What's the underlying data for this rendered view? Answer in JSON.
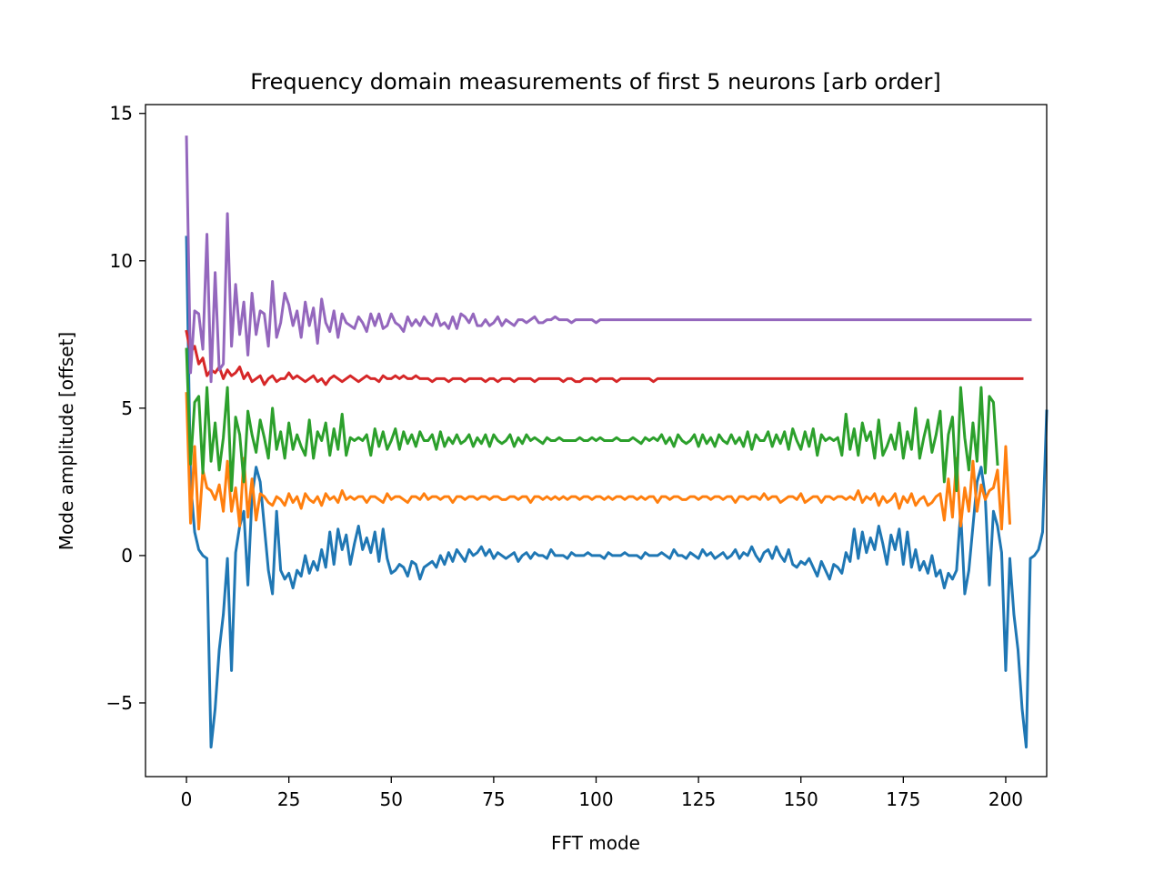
{
  "chart_data": {
    "type": "line",
    "title": "Frequency domain measurements of first 5 neurons [arb order]",
    "xlabel": "FFT mode",
    "ylabel": "Mode amplitude [offset]",
    "xlim": [
      -10,
      210
    ],
    "ylim": [
      -7.5,
      15.3
    ],
    "xticks": [
      0,
      25,
      50,
      75,
      100,
      125,
      150,
      175,
      200
    ],
    "yticks": [
      -5,
      0,
      5,
      10,
      15
    ],
    "ytick_labels": [
      "−5",
      "0",
      "5",
      "10",
      "15"
    ],
    "grid": false,
    "x_step": 1,
    "series": [
      {
        "color": "#1f77b4",
        "values": [
          10.8,
          2.5,
          0.8,
          0.2,
          0.0,
          -0.1,
          -6.5,
          -5.2,
          -3.2,
          -2.0,
          -0.1,
          -3.9,
          0.1,
          1.0,
          1.5,
          -1.0,
          2.0,
          3.0,
          2.5,
          1.0,
          -0.5,
          -1.3,
          1.5,
          -0.5,
          -0.8,
          -0.6,
          -1.1,
          -0.5,
          -0.7,
          0.0,
          -0.6,
          -0.2,
          -0.5,
          0.2,
          -0.4,
          0.8,
          -0.3,
          0.9,
          0.2,
          0.7,
          -0.3,
          0.4,
          1.0,
          0.2,
          0.6,
          0.1,
          0.8,
          -0.2,
          0.9,
          -0.1,
          -0.6,
          -0.5,
          -0.3,
          -0.4,
          -0.7,
          -0.2,
          -0.3,
          -0.8,
          -0.4,
          -0.3,
          -0.2,
          -0.4,
          0.0,
          -0.3,
          0.1,
          -0.2,
          0.2,
          0.0,
          -0.2,
          0.2,
          0.0,
          0.1,
          0.3,
          0.0,
          0.2,
          -0.1,
          0.1,
          0.0,
          -0.1,
          0.0,
          0.1,
          -0.2,
          0.0,
          0.1,
          -0.1,
          0.1,
          0.0,
          0.0,
          -0.1,
          0.2,
          0.0,
          0.0,
          0.0,
          -0.1,
          0.1,
          0.0,
          0.0,
          0.0,
          0.1,
          0.0,
          0.0,
          0.0,
          -0.1,
          0.1,
          0.0,
          0.0,
          0.0,
          0.1,
          0.0,
          0.0,
          0.0,
          -0.1,
          0.1,
          0.0,
          0.0,
          0.0,
          0.1,
          0.0,
          -0.1,
          0.2,
          0.0,
          0.0,
          -0.1,
          0.1,
          0.0,
          -0.1,
          0.2,
          0.0,
          0.1,
          -0.1,
          0.0,
          0.1,
          -0.1,
          0.0,
          0.2,
          -0.1,
          0.1,
          0.0,
          0.3,
          0.0,
          -0.2,
          0.1,
          0.2,
          -0.1,
          0.3,
          0.0,
          -0.2,
          0.2,
          -0.3,
          -0.4,
          -0.2,
          -0.3,
          -0.1,
          -0.4,
          -0.7,
          -0.2,
          -0.5,
          -0.8,
          -0.3,
          -0.4,
          -0.6,
          0.1,
          -0.2,
          0.9,
          -0.1,
          0.8,
          0.1,
          0.6,
          0.2,
          1.0,
          0.4,
          -0.3,
          0.7,
          0.2,
          0.9,
          -0.3,
          0.8,
          -0.4,
          0.2,
          -0.5,
          -0.2,
          -0.6,
          0.0,
          -0.7,
          -0.5,
          -1.1,
          -0.6,
          -0.8,
          -0.5,
          1.5,
          -1.3,
          -0.5,
          1.0,
          2.5,
          3.0,
          2.0,
          -1.0,
          1.5,
          1.0,
          0.1,
          -3.9,
          -0.1,
          -2.0,
          -3.2,
          -5.2,
          -6.5,
          -0.1,
          0.0,
          0.2,
          0.8,
          4.9
        ]
      },
      {
        "color": "#ff7f0e",
        "values": [
          5.5,
          1.1,
          3.7,
          0.9,
          2.9,
          2.3,
          2.2,
          1.9,
          2.4,
          1.5,
          3.2,
          1.5,
          2.3,
          1.0,
          3.3,
          1.3,
          2.6,
          1.2,
          2.1,
          2.0,
          1.8,
          1.7,
          2.0,
          1.9,
          1.7,
          2.1,
          1.8,
          2.0,
          1.6,
          2.1,
          1.9,
          1.8,
          2.0,
          1.7,
          2.1,
          1.9,
          2.0,
          1.8,
          2.2,
          1.9,
          2.0,
          1.9,
          2.0,
          2.0,
          1.8,
          2.0,
          2.0,
          1.9,
          1.8,
          2.1,
          1.9,
          2.0,
          2.0,
          1.9,
          1.8,
          2.0,
          2.0,
          1.9,
          2.1,
          1.9,
          2.0,
          2.0,
          1.9,
          2.0,
          2.0,
          1.8,
          2.0,
          2.0,
          1.9,
          2.0,
          2.0,
          1.9,
          2.0,
          2.0,
          1.9,
          2.0,
          2.0,
          1.9,
          1.9,
          2.0,
          2.0,
          1.9,
          2.0,
          2.0,
          1.8,
          2.0,
          2.0,
          1.9,
          2.0,
          1.9,
          2.0,
          1.9,
          2.0,
          1.9,
          2.0,
          2.0,
          1.9,
          2.0,
          2.0,
          1.9,
          2.0,
          2.0,
          1.9,
          2.0,
          1.9,
          2.0,
          2.0,
          1.9,
          2.0,
          2.0,
          1.9,
          2.0,
          1.9,
          2.0,
          2.0,
          1.8,
          2.0,
          2.0,
          1.9,
          2.0,
          2.0,
          1.9,
          1.9,
          2.0,
          2.0,
          1.9,
          2.0,
          2.0,
          1.9,
          2.0,
          2.0,
          1.9,
          2.0,
          2.0,
          1.8,
          2.0,
          2.0,
          1.9,
          2.0,
          2.0,
          1.9,
          2.1,
          1.9,
          2.0,
          2.0,
          1.8,
          1.9,
          2.0,
          2.0,
          1.9,
          2.1,
          1.8,
          1.9,
          2.0,
          2.0,
          1.8,
          2.0,
          2.0,
          1.9,
          2.0,
          2.0,
          1.9,
          2.0,
          1.9,
          2.2,
          1.8,
          2.0,
          1.9,
          2.1,
          1.7,
          2.0,
          1.8,
          1.9,
          2.1,
          1.6,
          2.0,
          1.8,
          2.1,
          1.7,
          1.9,
          2.0,
          1.7,
          1.8,
          2.0,
          2.1,
          1.2,
          2.6,
          1.3,
          3.3,
          1.0,
          2.3,
          1.5,
          3.2,
          1.5,
          2.4,
          1.9,
          2.2,
          2.3,
          2.9,
          0.9,
          3.7,
          1.1
        ]
      },
      {
        "color": "#2ca02c",
        "values": [
          7.0,
          3.1,
          5.2,
          5.4,
          2.8,
          5.7,
          3.2,
          4.5,
          2.9,
          4.0,
          5.7,
          2.2,
          4.7,
          4.1,
          2.5,
          4.9,
          4.1,
          3.5,
          4.6,
          4.0,
          3.3,
          5.0,
          3.6,
          4.2,
          3.3,
          4.5,
          3.6,
          4.1,
          3.7,
          3.4,
          4.6,
          3.3,
          4.2,
          3.9,
          4.5,
          3.4,
          4.3,
          3.6,
          4.8,
          3.4,
          4.0,
          3.9,
          4.0,
          3.9,
          4.1,
          3.4,
          4.3,
          3.7,
          4.2,
          3.6,
          3.9,
          4.3,
          3.6,
          4.2,
          3.8,
          4.1,
          3.7,
          4.2,
          3.9,
          3.9,
          4.1,
          3.6,
          4.2,
          3.7,
          4.0,
          3.8,
          4.1,
          3.8,
          3.9,
          4.1,
          3.7,
          4.0,
          3.8,
          4.1,
          3.7,
          4.1,
          3.9,
          3.8,
          3.9,
          4.1,
          3.7,
          4.0,
          3.8,
          4.1,
          3.9,
          4.0,
          3.9,
          3.8,
          4.0,
          3.9,
          3.9,
          4.0,
          3.9,
          3.9,
          3.9,
          3.9,
          4.0,
          3.9,
          3.9,
          4.0,
          3.9,
          4.0,
          3.9,
          3.9,
          3.9,
          4.0,
          3.9,
          3.9,
          3.9,
          4.0,
          3.9,
          3.8,
          4.0,
          3.9,
          4.0,
          3.9,
          4.1,
          3.8,
          4.0,
          3.7,
          4.1,
          3.9,
          3.8,
          3.9,
          4.1,
          3.7,
          4.1,
          3.8,
          4.0,
          3.7,
          4.1,
          3.9,
          3.8,
          4.1,
          3.8,
          4.0,
          3.7,
          4.2,
          3.6,
          4.1,
          3.9,
          3.9,
          4.2,
          3.7,
          4.1,
          3.8,
          4.2,
          3.6,
          4.3,
          3.9,
          3.6,
          4.2,
          3.7,
          4.3,
          3.4,
          4.1,
          3.9,
          4.0,
          3.9,
          4.0,
          3.4,
          4.8,
          3.6,
          4.3,
          3.4,
          4.5,
          3.9,
          4.2,
          3.3,
          4.6,
          3.4,
          3.7,
          4.1,
          3.6,
          4.5,
          3.3,
          4.2,
          3.6,
          5.0,
          3.3,
          4.0,
          4.6,
          3.5,
          4.1,
          4.9,
          2.5,
          4.1,
          4.7,
          2.2,
          5.7,
          4.0,
          2.9,
          4.5,
          3.2,
          5.7,
          2.8,
          5.4,
          5.2,
          3.1
        ]
      },
      {
        "color": "#d62728",
        "values": [
          7.6,
          6.9,
          7.1,
          6.5,
          6.7,
          6.1,
          6.3,
          6.2,
          6.4,
          6.0,
          6.3,
          6.1,
          6.2,
          6.4,
          6.0,
          6.2,
          5.9,
          6.0,
          6.1,
          5.8,
          6.0,
          6.1,
          5.9,
          6.0,
          6.0,
          6.2,
          6.0,
          6.1,
          6.0,
          5.9,
          6.0,
          6.1,
          5.9,
          6.0,
          5.8,
          6.0,
          6.1,
          6.0,
          5.9,
          6.0,
          6.1,
          6.0,
          5.9,
          6.0,
          6.1,
          6.0,
          6.0,
          5.9,
          6.1,
          6.0,
          6.0,
          6.1,
          6.0,
          6.1,
          6.0,
          6.0,
          6.1,
          6.0,
          6.0,
          6.0,
          5.9,
          6.0,
          6.0,
          6.0,
          5.9,
          6.0,
          6.0,
          6.0,
          5.9,
          6.0,
          6.0,
          6.0,
          6.0,
          5.9,
          6.0,
          6.0,
          5.9,
          6.0,
          6.0,
          6.0,
          5.9,
          6.0,
          6.0,
          6.0,
          6.0,
          5.9,
          6.0,
          6.0,
          6.0,
          6.0,
          6.0,
          6.0,
          5.9,
          6.0,
          6.0,
          5.9,
          5.9,
          6.0,
          6.0,
          6.0,
          5.9,
          6.0,
          6.0,
          6.0,
          6.0,
          5.9,
          6.0,
          6.0,
          6.0,
          6.0,
          6.0,
          6.0,
          6.0,
          6.0,
          5.9,
          6.0,
          6.0,
          6.0,
          6.0,
          6.0,
          6.0,
          6.0,
          6.0,
          6.0,
          6.0,
          6.0,
          6.0,
          6.0,
          6.0,
          6.0,
          6.0,
          6.0,
          6.0,
          6.0,
          6.0,
          6.0,
          6.0,
          6.0,
          6.0,
          6.0,
          6.0,
          6.0,
          6.0,
          6.0,
          6.0,
          6.0,
          6.0,
          6.0,
          6.0,
          6.0,
          6.0,
          6.0,
          6.0,
          6.0,
          6.0,
          6.0,
          6.0,
          6.0,
          6.0,
          6.0,
          6.0,
          6.0,
          6.0,
          6.0,
          6.0,
          6.0,
          6.0,
          6.0,
          6.0,
          6.0,
          6.0,
          6.0,
          6.0,
          6.0,
          6.0,
          6.0,
          6.0,
          6.0,
          6.0,
          6.0,
          6.0,
          6.0,
          6.0,
          6.0,
          6.0,
          6.0,
          6.0,
          6.0,
          6.0,
          6.0,
          6.0,
          6.0,
          6.0,
          6.0,
          6.0,
          6.0,
          6.0,
          6.0,
          6.0,
          6.0,
          6.0,
          6.0,
          6.0,
          6.0,
          6.0
        ]
      },
      {
        "color": "#9467bd",
        "values": [
          14.2,
          6.2,
          8.3,
          8.2,
          7.0,
          10.9,
          5.9,
          9.6,
          6.3,
          6.5,
          11.6,
          7.1,
          9.2,
          7.5,
          8.6,
          6.8,
          8.9,
          7.5,
          8.3,
          8.2,
          7.1,
          9.3,
          7.4,
          7.9,
          8.9,
          8.5,
          7.8,
          8.3,
          7.4,
          8.6,
          7.8,
          8.4,
          7.2,
          8.7,
          7.9,
          7.6,
          8.3,
          7.4,
          8.2,
          7.9,
          7.8,
          7.7,
          8.1,
          7.9,
          7.6,
          8.2,
          7.8,
          8.2,
          7.7,
          7.8,
          8.2,
          7.9,
          7.8,
          7.6,
          8.1,
          7.8,
          8.0,
          7.8,
          8.1,
          7.9,
          7.8,
          8.2,
          7.8,
          7.9,
          7.7,
          8.1,
          7.7,
          8.2,
          8.1,
          7.9,
          8.2,
          7.8,
          7.8,
          8.0,
          7.8,
          7.9,
          8.1,
          7.8,
          8.0,
          7.9,
          7.8,
          8.0,
          8.0,
          7.9,
          8.0,
          8.1,
          7.9,
          7.9,
          8.0,
          8.0,
          8.1,
          8.0,
          8.0,
          8.0,
          7.9,
          8.0,
          8.0,
          8.0,
          8.0,
          8.0,
          7.9,
          8.0,
          8.0,
          8.0,
          8.0,
          8.0,
          8.0,
          8.0,
          8.0,
          8.0,
          8.0,
          8.0,
          8.0,
          8.0,
          8.0,
          8.0,
          8.0,
          8.0,
          8.0,
          8.0,
          8.0,
          8.0,
          8.0,
          8.0,
          8.0,
          8.0,
          8.0,
          8.0,
          8.0,
          8.0,
          8.0,
          8.0,
          8.0,
          8.0,
          8.0,
          8.0,
          8.0,
          8.0,
          8.0,
          8.0,
          8.0,
          8.0,
          8.0,
          8.0,
          8.0,
          8.0,
          8.0,
          8.0,
          8.0,
          8.0,
          8.0,
          8.0,
          8.0,
          8.0,
          8.0,
          8.0,
          8.0,
          8.0,
          8.0,
          8.0,
          8.0,
          8.0,
          8.0,
          8.0,
          8.0,
          8.0,
          8.0,
          8.0,
          8.0,
          8.0,
          8.0,
          8.0,
          8.0,
          8.0,
          8.0,
          8.0,
          8.0,
          8.0,
          8.0,
          8.0,
          8.0,
          8.0,
          8.0,
          8.0,
          8.0,
          8.0,
          8.0,
          8.0,
          8.0,
          8.0,
          8.0,
          8.0,
          8.0,
          8.0,
          8.0,
          8.0,
          8.0,
          8.0,
          8.0,
          8.0,
          8.0,
          8.0,
          8.0,
          8.0,
          8.0,
          8.0,
          8.0
        ]
      }
    ]
  }
}
